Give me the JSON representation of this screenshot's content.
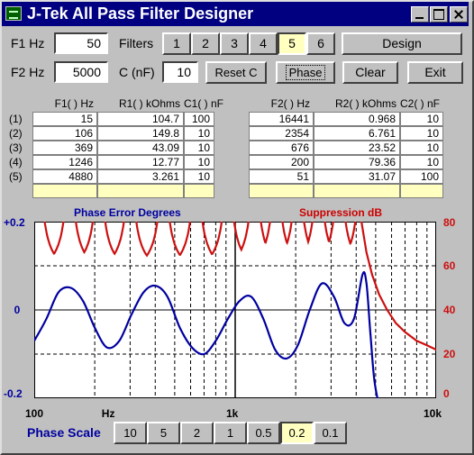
{
  "window": {
    "title": "J-Tek All Pass Filter Designer"
  },
  "inputs": {
    "f1_label": "F1 Hz",
    "f1_value": "50",
    "f2_label": "F2 Hz",
    "f2_value": "5000",
    "filters_label": "Filters",
    "filter_buttons": [
      "1",
      "2",
      "3",
      "4",
      "5",
      "6"
    ],
    "filter_selected": "5",
    "c_label": "C (nF)",
    "c_value": "10"
  },
  "buttons": {
    "design": "Design",
    "reset_c": "Reset C",
    "phase": "Phase",
    "clear": "Clear",
    "exit": "Exit"
  },
  "table_left": {
    "headers": [
      "F1( ) Hz",
      "R1( ) kOhms",
      "C1( ) nF"
    ],
    "rows": [
      [
        "15",
        "104.7",
        "100"
      ],
      [
        "106",
        "149.8",
        "10"
      ],
      [
        "369",
        "43.09",
        "10"
      ],
      [
        "1246",
        "12.77",
        "10"
      ],
      [
        "4880",
        "3.261",
        "10"
      ]
    ]
  },
  "table_right": {
    "headers": [
      "F2( ) Hz",
      "R2( ) kOhms",
      "C2( ) nF"
    ],
    "rows": [
      [
        "16441",
        "0.968",
        "10"
      ],
      [
        "2354",
        "6.761",
        "10"
      ],
      [
        "676",
        "23.52",
        "10"
      ],
      [
        "200",
        "79.36",
        "10"
      ],
      [
        "51",
        "31.07",
        "100"
      ]
    ]
  },
  "row_labels": [
    "(1)",
    "(2)",
    "(3)",
    "(4)",
    "(5)"
  ],
  "chart_data": {
    "type": "line",
    "left_title": "Phase Error Degrees",
    "right_title": "Suppression dB",
    "x_scale": "log",
    "xlim": [
      100,
      10000
    ],
    "x_tick_labels": [
      "100",
      "Hz",
      "1k",
      "10k"
    ],
    "left_ylim": [
      -0.2,
      0.2
    ],
    "left_tick_labels": [
      "+0.2",
      "0",
      "-0.2"
    ],
    "right_ylim": [
      0,
      80
    ],
    "right_tick_labels": [
      "80",
      "60",
      "40",
      "20",
      "0"
    ],
    "grid": true,
    "colors": {
      "phase": "#0000a0",
      "suppression": "#cc1010",
      "left_title": "#0000a0",
      "right_title": "#cc0000"
    },
    "phase_error": {
      "x": [
        100,
        115,
        132,
        152,
        175,
        200,
        230,
        265,
        305,
        350,
        400,
        460,
        530,
        610,
        700,
        800,
        920,
        1050,
        1200,
        1380,
        1580,
        1800,
        2050,
        2350,
        2700,
        3100,
        3500,
        3900,
        4300,
        4500,
        4700,
        4900,
        5100
      ],
      "y": [
        -0.07,
        -0.02,
        0.04,
        0.05,
        0.02,
        -0.04,
        -0.085,
        -0.07,
        -0.01,
        0.04,
        0.055,
        0.03,
        -0.04,
        -0.085,
        -0.1,
        -0.07,
        -0.02,
        0.02,
        0.03,
        -0.02,
        -0.09,
        -0.11,
        -0.08,
        0.0,
        0.06,
        0.03,
        -0.03,
        -0.02,
        0.08,
        0.06,
        -0.05,
        -0.15,
        -0.2
      ]
    },
    "suppression_notches_hz": [
      105,
      150,
      210,
      300,
      440,
      640,
      920,
      1250,
      1600,
      2050,
      2600,
      3300,
      4250
    ],
    "suppression_floor_db": 60,
    "suppression_rolloff": {
      "x": [
        4250,
        4500,
        4800,
        5200,
        5700,
        6300,
        7000,
        8000,
        9000,
        10000
      ],
      "y": [
        80,
        66,
        56,
        47,
        40,
        34,
        30,
        26,
        24,
        22
      ]
    }
  },
  "phase_scale": {
    "label": "Phase Scale",
    "options": [
      "10",
      "5",
      "2",
      "1",
      "0.5",
      "0.2",
      "0.1"
    ],
    "selected": "0.2"
  }
}
